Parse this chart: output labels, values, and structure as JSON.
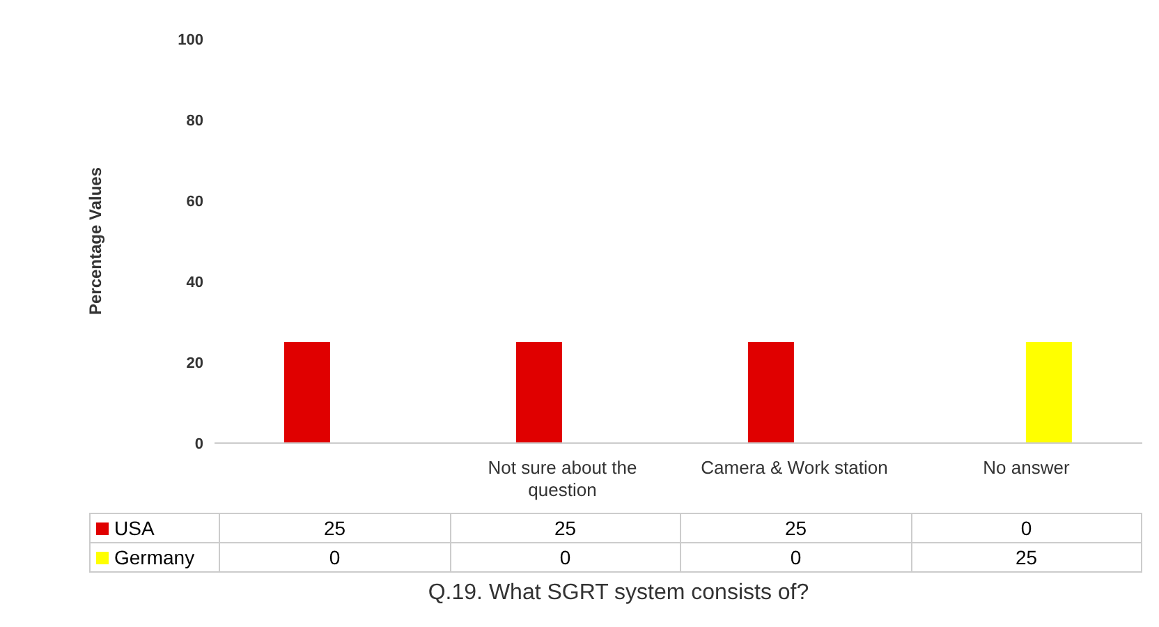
{
  "chart_data": {
    "type": "bar",
    "title": "Q.19. What SGRT system consists of?",
    "ylabel": "Percentage Values",
    "categories": [
      null,
      "Not sure about the question",
      "Camera & Work station",
      "No answer"
    ],
    "series": [
      {
        "name": "USA",
        "color": "#e00000",
        "values": [
          25,
          25,
          25,
          0
        ]
      },
      {
        "name": "Germany",
        "color": "#ffff00",
        "values": [
          0,
          0,
          0,
          25
        ]
      }
    ],
    "ylim": [
      0,
      100
    ],
    "yticks": [
      0,
      20,
      40,
      60,
      80,
      100
    ],
    "grid": false,
    "legend": "bottom",
    "data_labels": true
  }
}
